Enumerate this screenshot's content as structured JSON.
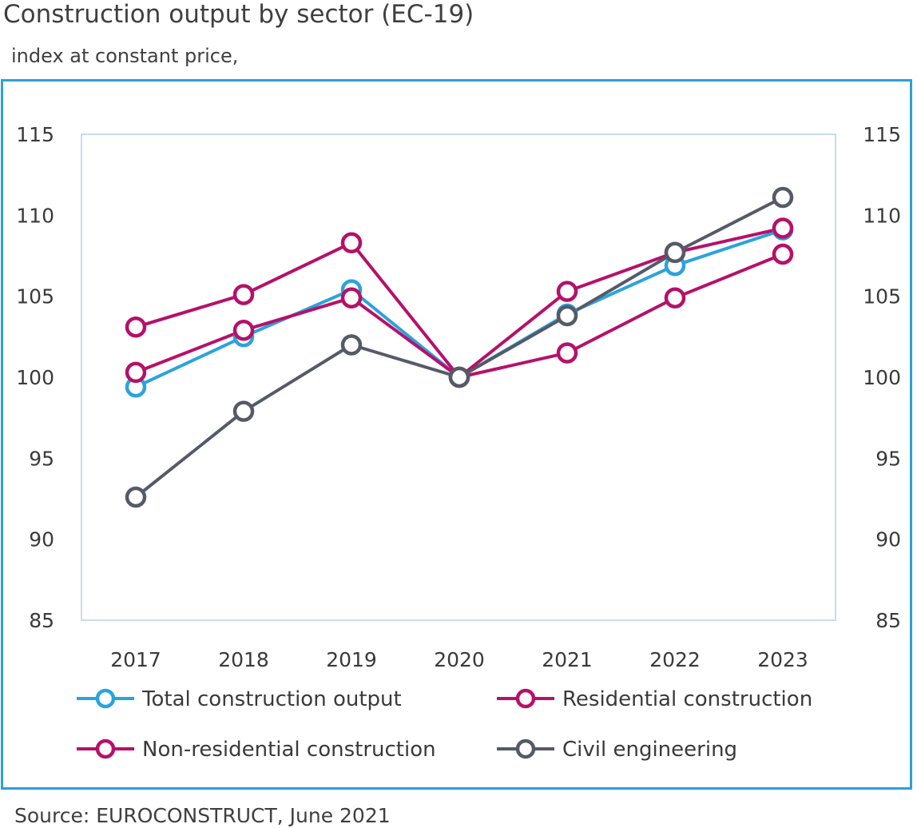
{
  "title": "Construction output by sector (EC-19)",
  "subtitle": "index at constant price,",
  "source": "Source: EUROCONSTRUCT, June 2021",
  "chart_data": {
    "type": "line",
    "title": "Construction output by sector (EC-19)",
    "subtitle": "index at constant price,",
    "xlabel": "",
    "ylabel": "",
    "categories": [
      "2017",
      "2018",
      "2019",
      "2020",
      "2021",
      "2022",
      "2023"
    ],
    "ylim": [
      85,
      115
    ],
    "yticks": [
      "115",
      "110",
      "105",
      "100",
      "95",
      "90",
      "85"
    ],
    "y2ticks": [
      "115",
      "110",
      "105",
      "100",
      "95",
      "90",
      "85"
    ],
    "grid": false,
    "legend_position": "bottom",
    "series": [
      {
        "name": "Total construction output",
        "color": "#2ba3dc",
        "values": [
          99.4,
          102.5,
          105.4,
          100,
          103.9,
          106.9,
          109.1
        ]
      },
      {
        "name": "Residential construction",
        "color": "#b5116a",
        "values": [
          100.3,
          102.9,
          104.9,
          100,
          105.3,
          107.7,
          109.2
        ]
      },
      {
        "name": "Non-residential construction",
        "color": "#b5116a",
        "values": [
          103.1,
          105.1,
          108.3,
          100,
          101.5,
          104.9,
          107.6
        ]
      },
      {
        "name": "Civil engineering",
        "color": "#555a68",
        "values": [
          92.6,
          97.9,
          102.0,
          100,
          103.8,
          107.7,
          111.1
        ]
      }
    ]
  }
}
